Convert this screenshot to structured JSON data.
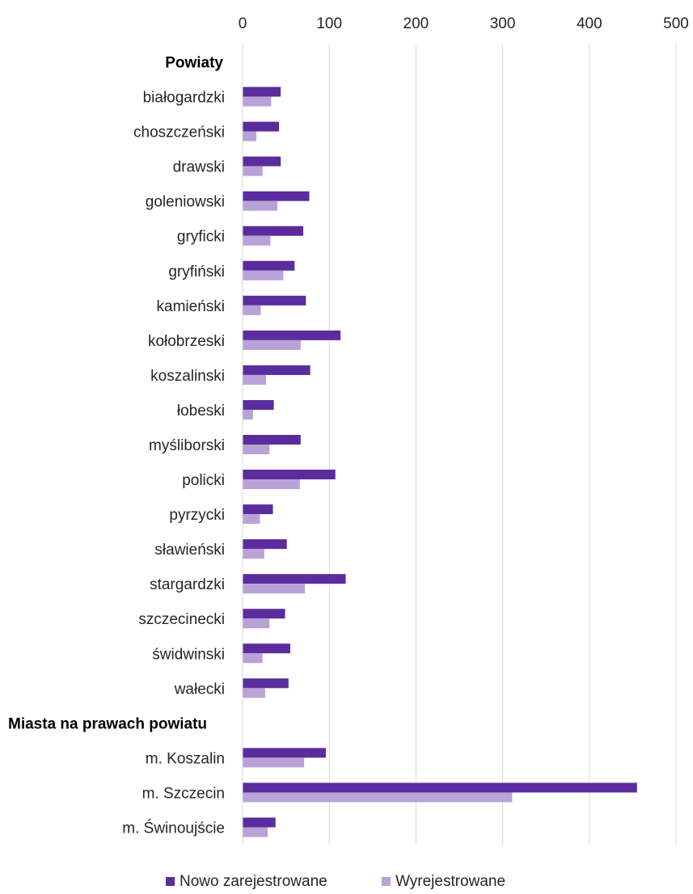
{
  "chart_data": {
    "type": "bar",
    "orientation": "horizontal",
    "xlim": [
      0,
      500
    ],
    "ticks": [
      0,
      100,
      200,
      300,
      400,
      500
    ],
    "grid": true,
    "legend_position": "bottom",
    "colors": {
      "series_0": "#5b2c9e",
      "series_1": "#b8a2d8",
      "grid": "#d9d9d9"
    },
    "rows": [
      {
        "kind": "group",
        "label": "Powiaty"
      },
      {
        "kind": "bar",
        "label": "białogardzki",
        "values": [
          44,
          33
        ]
      },
      {
        "kind": "bar",
        "label": "choszczeński",
        "values": [
          42,
          16
        ]
      },
      {
        "kind": "bar",
        "label": "drawski",
        "values": [
          44,
          23
        ]
      },
      {
        "kind": "bar",
        "label": "goleniowski",
        "values": [
          77,
          40
        ]
      },
      {
        "kind": "bar",
        "label": "gryficki",
        "values": [
          70,
          32
        ]
      },
      {
        "kind": "bar",
        "label": "gryfiński",
        "values": [
          60,
          47
        ]
      },
      {
        "kind": "bar",
        "label": "kamieński",
        "values": [
          73,
          21
        ]
      },
      {
        "kind": "bar",
        "label": "kołobrzeski",
        "values": [
          113,
          67
        ]
      },
      {
        "kind": "bar",
        "label": "koszalinski",
        "values": [
          78,
          27
        ]
      },
      {
        "kind": "bar",
        "label": "łobeski",
        "values": [
          36,
          12
        ]
      },
      {
        "kind": "bar",
        "label": "myśliborski",
        "values": [
          67,
          31
        ]
      },
      {
        "kind": "bar",
        "label": "policki",
        "values": [
          107,
          66
        ]
      },
      {
        "kind": "bar",
        "label": "pyrzycki",
        "values": [
          35,
          20
        ]
      },
      {
        "kind": "bar",
        "label": "sławieński",
        "values": [
          51,
          25
        ]
      },
      {
        "kind": "bar",
        "label": "stargardzki",
        "values": [
          119,
          72
        ]
      },
      {
        "kind": "bar",
        "label": "szczecinecki",
        "values": [
          49,
          31
        ]
      },
      {
        "kind": "bar",
        "label": "świdwinski",
        "values": [
          55,
          23
        ]
      },
      {
        "kind": "bar",
        "label": "wałecki",
        "values": [
          53,
          26
        ]
      },
      {
        "kind": "group",
        "label": "Miasta na prawach powiatu"
      },
      {
        "kind": "bar",
        "label": "m. Koszalin",
        "values": [
          96,
          71
        ]
      },
      {
        "kind": "bar",
        "label": "m. Szczecin",
        "values": [
          455,
          311
        ]
      },
      {
        "kind": "bar",
        "label": "m. Świnoujście",
        "values": [
          38,
          29
        ]
      }
    ],
    "series": [
      {
        "name": "Nowo zarejestrowane"
      },
      {
        "name": "Wyrejestrowane"
      }
    ]
  }
}
